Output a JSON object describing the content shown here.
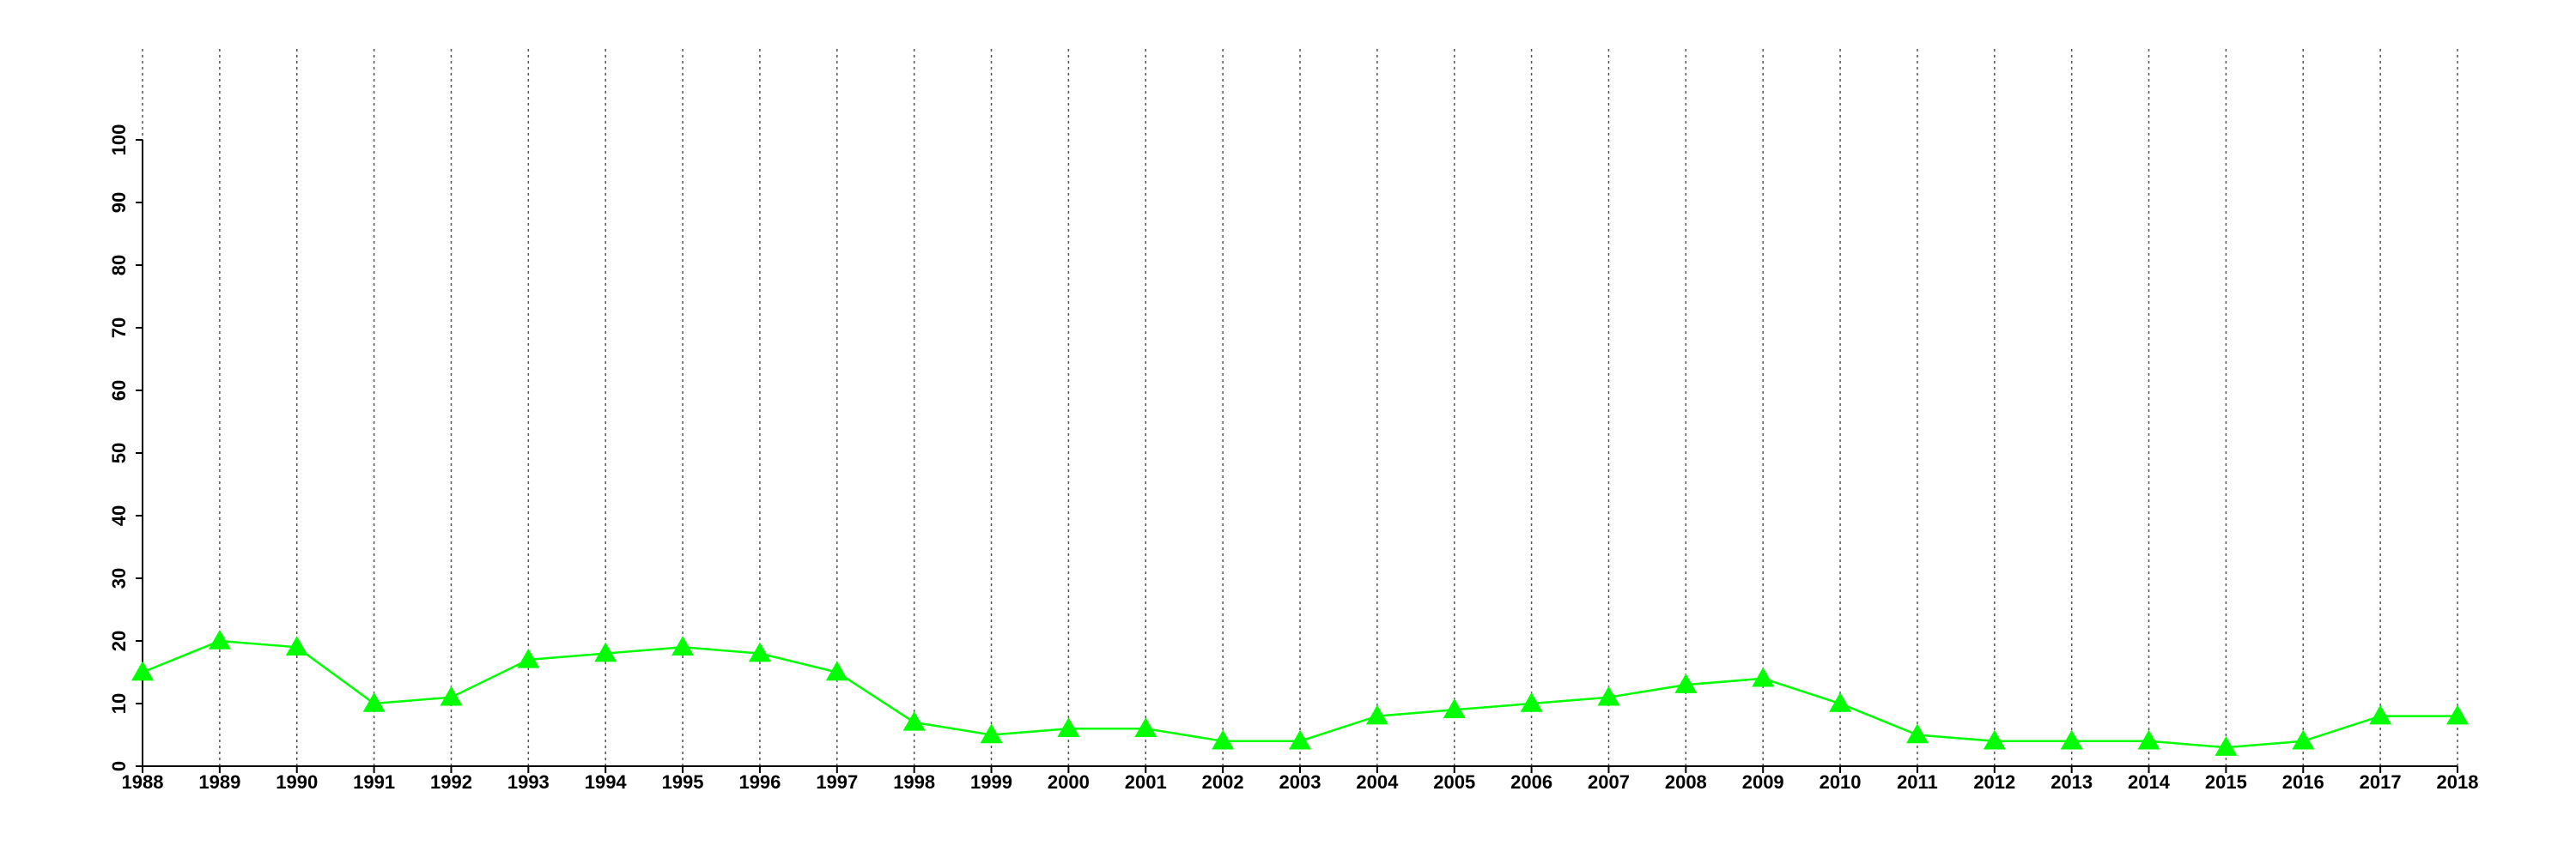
{
  "chart_data": {
    "type": "line",
    "marker": "triangle",
    "grid": "x",
    "x": [
      1988,
      1989,
      1990,
      1991,
      1992,
      1993,
      1994,
      1995,
      1996,
      1997,
      1998,
      1999,
      2000,
      2001,
      2002,
      2003,
      2004,
      2005,
      2006,
      2007,
      2008,
      2009,
      2010,
      2011,
      2012,
      2013,
      2014,
      2015,
      2016,
      2017,
      2018
    ],
    "series": [
      {
        "color": "#00ff00",
        "values": [
          15,
          20,
          19,
          10,
          11,
          17,
          18,
          19,
          18,
          15,
          7,
          5,
          6,
          6,
          4,
          4,
          8,
          9,
          10,
          11,
          13,
          14,
          10,
          5,
          4,
          4,
          4,
          3,
          4,
          8,
          8
        ]
      }
    ],
    "xlim": [
      1988,
      2018
    ],
    "xticks": [
      1988,
      1989,
      1990,
      1991,
      1992,
      1993,
      1994,
      1995,
      1996,
      1997,
      1998,
      1999,
      2000,
      2001,
      2002,
      2003,
      2004,
      2005,
      2006,
      2007,
      2008,
      2009,
      2010,
      2011,
      2012,
      2013,
      2014,
      2015,
      2016,
      2017,
      2018
    ],
    "ylim": [
      0,
      100
    ],
    "yticks": [
      0,
      10,
      20,
      30,
      40,
      50,
      60,
      70,
      80,
      90,
      100
    ]
  }
}
